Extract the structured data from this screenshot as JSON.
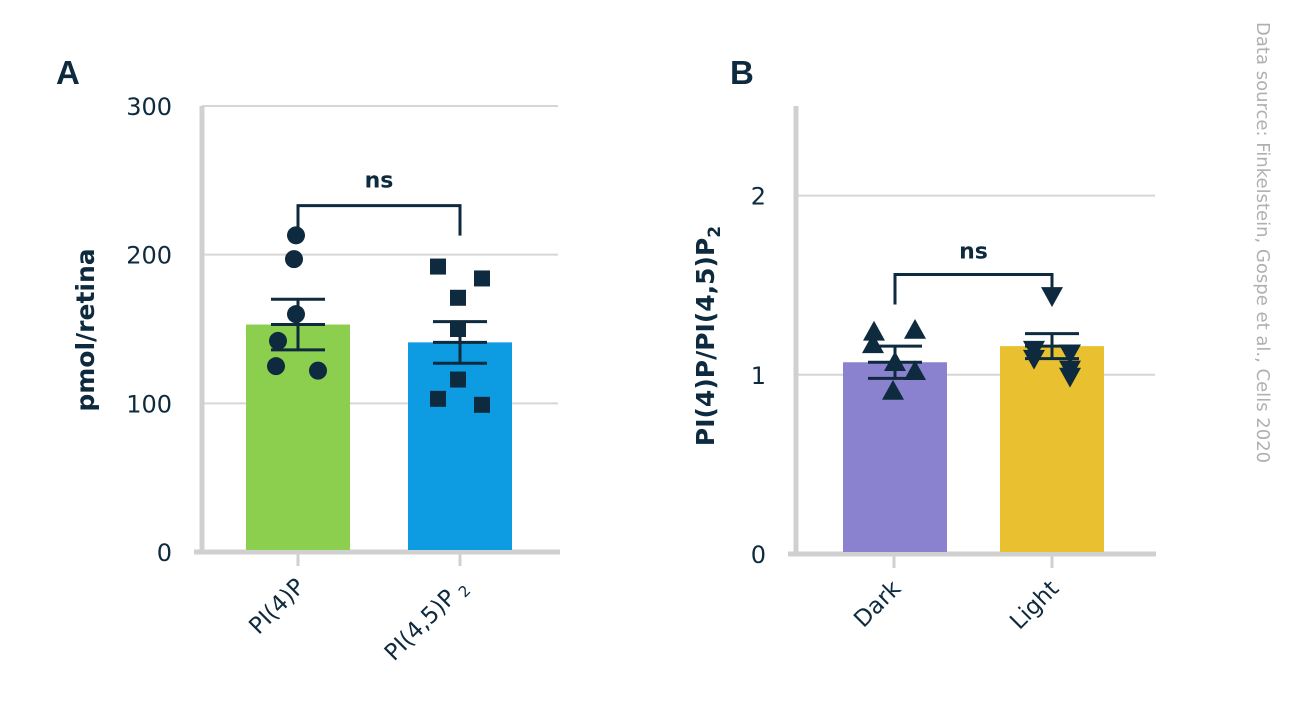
{
  "source_note": "Data source: Finkelstein, Gospe et al., Cells 2020",
  "colors": {
    "ink": "#0e2a3f",
    "grid": "#d6d6d6",
    "axis": "#d0d0d0",
    "green": "#8ccf4f",
    "blue": "#0d9be1",
    "purple": "#8b82cf",
    "yellow": "#e9c130"
  },
  "chart_data": [
    {
      "panel": "A",
      "type": "bar",
      "ylabel": "pmol/retina",
      "ylim": [
        0,
        300
      ],
      "yticks": [
        "0",
        "100",
        "200",
        "300"
      ],
      "yticks_values": [
        0,
        100,
        200,
        300
      ],
      "categories": [
        "PI(4)P",
        "PI(4,5)P"
      ],
      "category_subscripts": [
        "",
        "2"
      ],
      "values": [
        153,
        141
      ],
      "sem": [
        17,
        14
      ],
      "bar_colors": [
        "green",
        "blue"
      ],
      "marker_types": [
        "circle",
        "square"
      ],
      "points": [
        [
          213,
          197,
          160,
          142,
          125,
          122
        ],
        [
          192,
          184,
          171,
          150,
          116,
          103,
          99
        ]
      ],
      "significance": {
        "label": "ns",
        "level": 233
      }
    },
    {
      "panel": "B",
      "type": "bar",
      "ylabel": "PI(4)P/PI(4,5)P",
      "ylabel_subscript": "2",
      "ylim": [
        0,
        2.5
      ],
      "yticks": [
        "0",
        "1",
        "2"
      ],
      "yticks_values": [
        0,
        1,
        2
      ],
      "categories": [
        "Dark",
        "Light"
      ],
      "category_subscripts": [
        "",
        ""
      ],
      "values": [
        1.07,
        1.16
      ],
      "sem": [
        0.09,
        0.07
      ],
      "bar_colors": [
        "purple",
        "yellow"
      ],
      "marker_types": [
        "triangle-up",
        "triangle-down"
      ],
      "points": [
        [
          1.24,
          1.25,
          1.17,
          1.07,
          1.02,
          0.91
        ],
        [
          1.44,
          1.14,
          1.12,
          1.09,
          1.03,
          0.99
        ]
      ],
      "significance": {
        "label": "ns",
        "level": 1.56
      }
    }
  ]
}
